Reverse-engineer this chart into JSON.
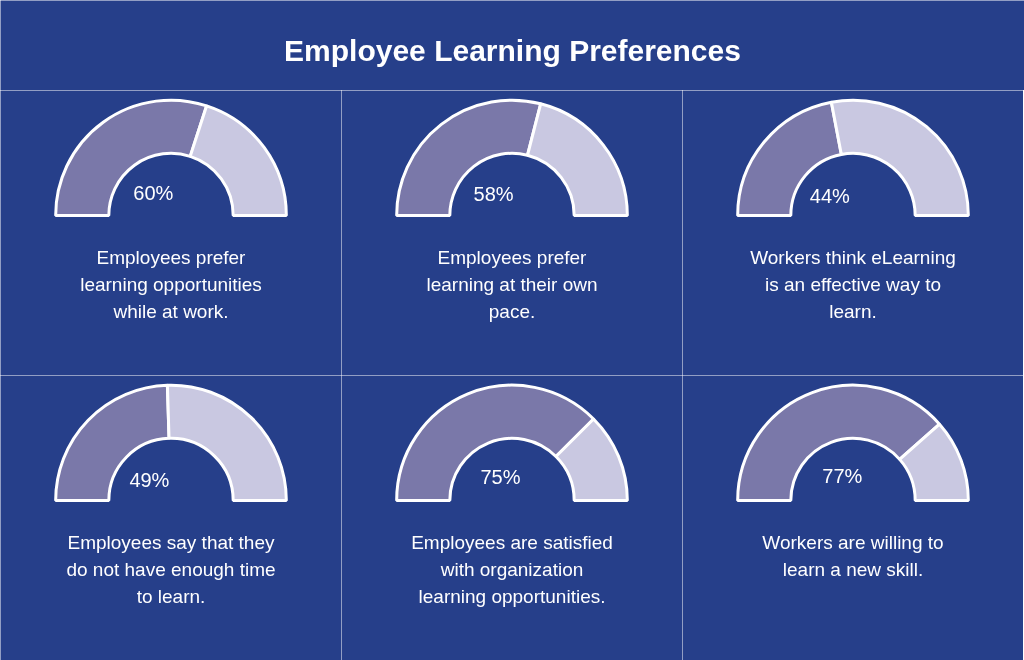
{
  "chart_data": [
    {
      "type": "other",
      "title": "Employee Learning Preferences"
    },
    {
      "type": "donut",
      "categories": [
        null,
        null
      ],
      "values": [
        60,
        40
      ],
      "colors": [
        "#7a78a9",
        "#c9c8e1"
      ],
      "value_labels": [
        "60%",
        null
      ],
      "annotations": [
        "Employees prefer learning opportunities while at work."
      ]
    },
    {
      "type": "donut",
      "categories": [
        null,
        null
      ],
      "values": [
        58,
        42
      ],
      "colors": [
        "#7a78a9",
        "#c9c8e1"
      ],
      "value_labels": [
        "58%",
        null
      ],
      "annotations": [
        "Employees prefer learning at their own pace."
      ]
    },
    {
      "type": "donut",
      "categories": [
        null,
        null
      ],
      "values": [
        44,
        56
      ],
      "colors": [
        "#7a78a9",
        "#c9c8e1"
      ],
      "value_labels": [
        "44%",
        null
      ],
      "annotations": [
        "Workers think eLearning is an effective way to learn."
      ]
    },
    {
      "type": "donut",
      "categories": [
        null,
        null
      ],
      "values": [
        49,
        51
      ],
      "colors": [
        "#7a78a9",
        "#c9c8e1"
      ],
      "value_labels": [
        "49%",
        null
      ],
      "annotations": [
        "Employees say that they do not have enough time to learn."
      ]
    },
    {
      "type": "donut",
      "categories": [
        null,
        null
      ],
      "values": [
        75,
        25
      ],
      "colors": [
        "#7a78a9",
        "#c9c8e1"
      ],
      "value_labels": [
        "75%",
        null
      ],
      "annotations": [
        "Employees are satisfied with organization learning opportunities."
      ]
    },
    {
      "type": "donut",
      "categories": [
        null,
        null
      ],
      "values": [
        77,
        23
      ],
      "colors": [
        "#7a78a9",
        "#c9c8e1"
      ],
      "value_labels": [
        "77%",
        null
      ],
      "annotations": [
        "Workers are willing to learn a new skill."
      ]
    }
  ]
}
